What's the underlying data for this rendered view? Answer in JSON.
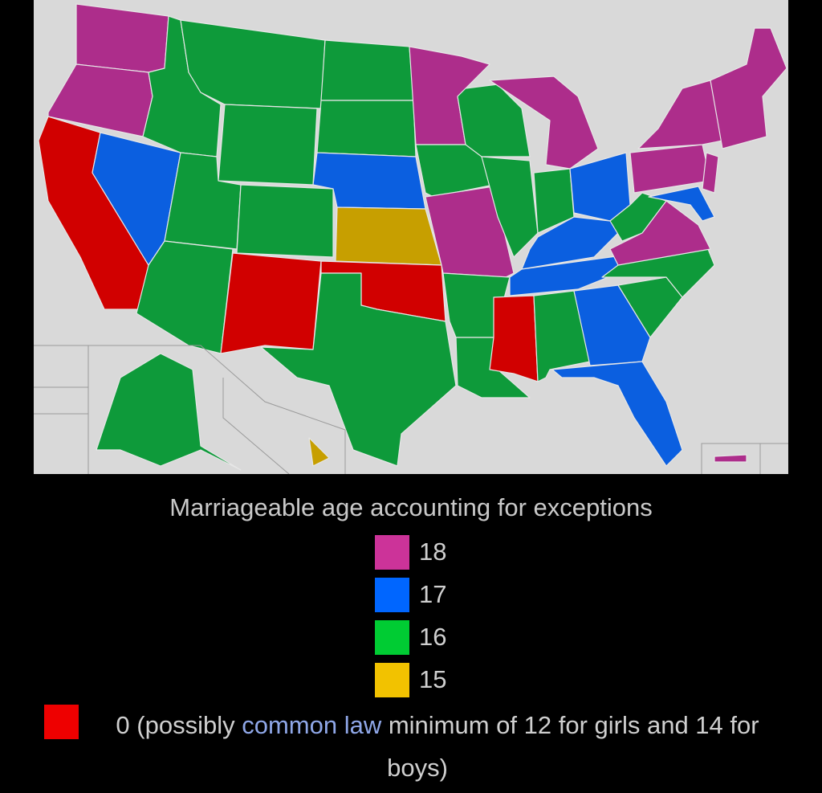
{
  "legend": {
    "title": "Marriageable age accounting for exceptions",
    "items": [
      {
        "label": "18",
        "color": "#cc3399"
      },
      {
        "label": "17",
        "color": "#0066ff"
      },
      {
        "label": "16",
        "color": "#00cc33"
      },
      {
        "label": "15",
        "color": "#f2c200"
      }
    ],
    "note": {
      "color": "#ee0000",
      "parts": [
        "0 (possibly ",
        "common law",
        " minimum of 12 for girls and 14 for boys)"
      ]
    }
  }
}
